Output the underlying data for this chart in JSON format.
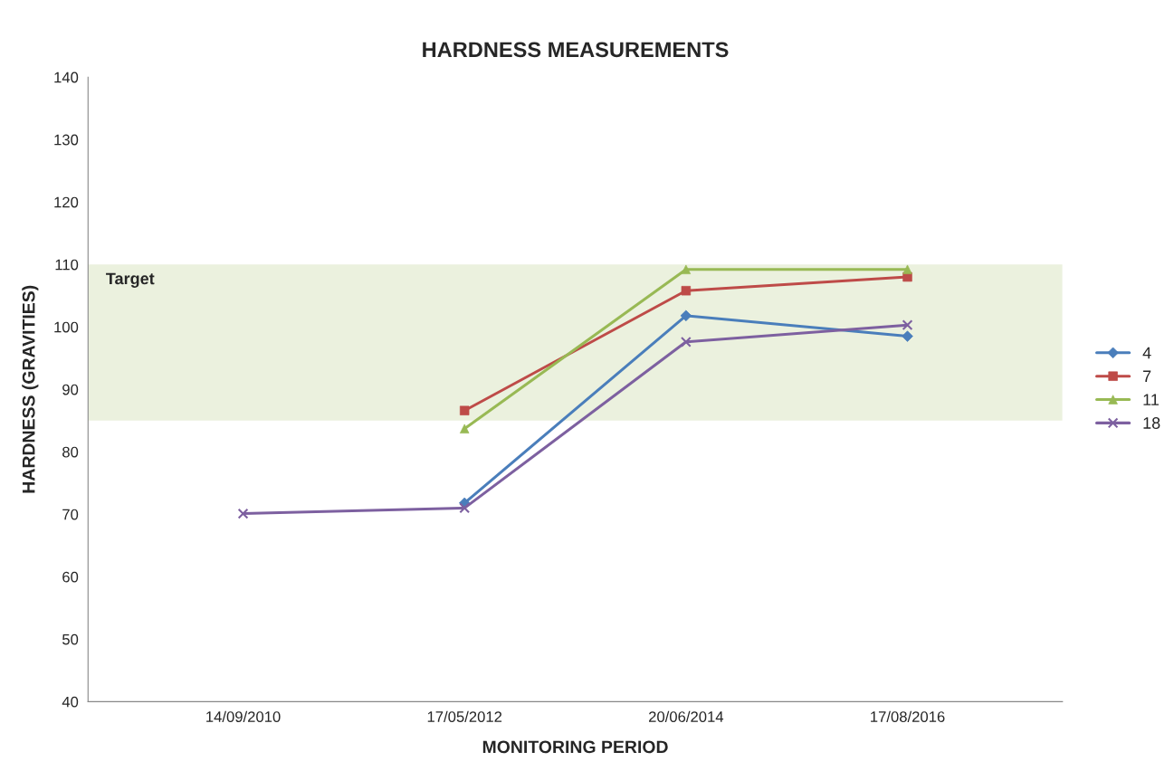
{
  "chart_data": {
    "type": "line",
    "title": "HARDNESS MEASUREMENTS",
    "xlabel": "MONITORING PERIOD",
    "ylabel": "HARDNESS (GRAVITIES)",
    "categories": [
      "14/09/2010",
      "17/05/2012",
      "20/06/2014",
      "17/08/2016"
    ],
    "series": [
      {
        "name": "4",
        "color": "#4a7ebb",
        "marker": "diamond",
        "values": [
          null,
          71.8,
          101.8,
          98.5
        ]
      },
      {
        "name": "7",
        "color": "#be4b48",
        "marker": "square",
        "values": [
          null,
          86.6,
          105.8,
          108
        ]
      },
      {
        "name": "11",
        "color": "#98b954",
        "marker": "triangle",
        "values": [
          null,
          83.7,
          109.2,
          109.2
        ]
      },
      {
        "name": "18",
        "color": "#7d60a0",
        "marker": "cross",
        "values": [
          70.1,
          71,
          97.6,
          100.3
        ]
      }
    ],
    "bands": [
      {
        "axis": "y",
        "from": 85,
        "to": 110,
        "label": "Target",
        "color": "#ebf1de"
      }
    ],
    "ylim": [
      40,
      140
    ],
    "yticks": [
      40,
      50,
      60,
      70,
      80,
      90,
      100,
      110,
      120,
      130,
      140
    ],
    "grid": false,
    "legend": "right",
    "line_style": "solid"
  }
}
